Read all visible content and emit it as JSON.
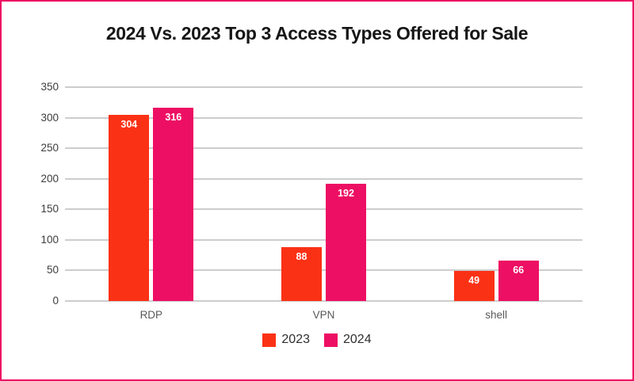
{
  "frame": {
    "border_color": "#ED0F64",
    "background": "#ffffff"
  },
  "chart_data": {
    "type": "bar",
    "title": "2024 Vs. 2023 Top 3 Access Types Offered for Sale",
    "categories": [
      "RDP",
      "VPN",
      "shell"
    ],
    "series": [
      {
        "name": "2023",
        "color": "#FB3115",
        "values": [
          304,
          88,
          49
        ]
      },
      {
        "name": "2024",
        "color": "#ED0F63",
        "values": [
          316,
          192,
          66
        ]
      }
    ],
    "yticks": [
      0,
      50,
      100,
      150,
      200,
      250,
      300,
      350
    ],
    "ylim": [
      0,
      350
    ],
    "xlabel": "",
    "ylabel": "",
    "grid": true,
    "legend_position": "bottom",
    "value_labels": true,
    "colors": {
      "gridline": "#cdcdcd",
      "ytick_label": "#3d3d3d",
      "category_label": "#595959",
      "value_label": "#ffffff",
      "title": "#161616",
      "legend_label": "#2e2e2e"
    }
  }
}
